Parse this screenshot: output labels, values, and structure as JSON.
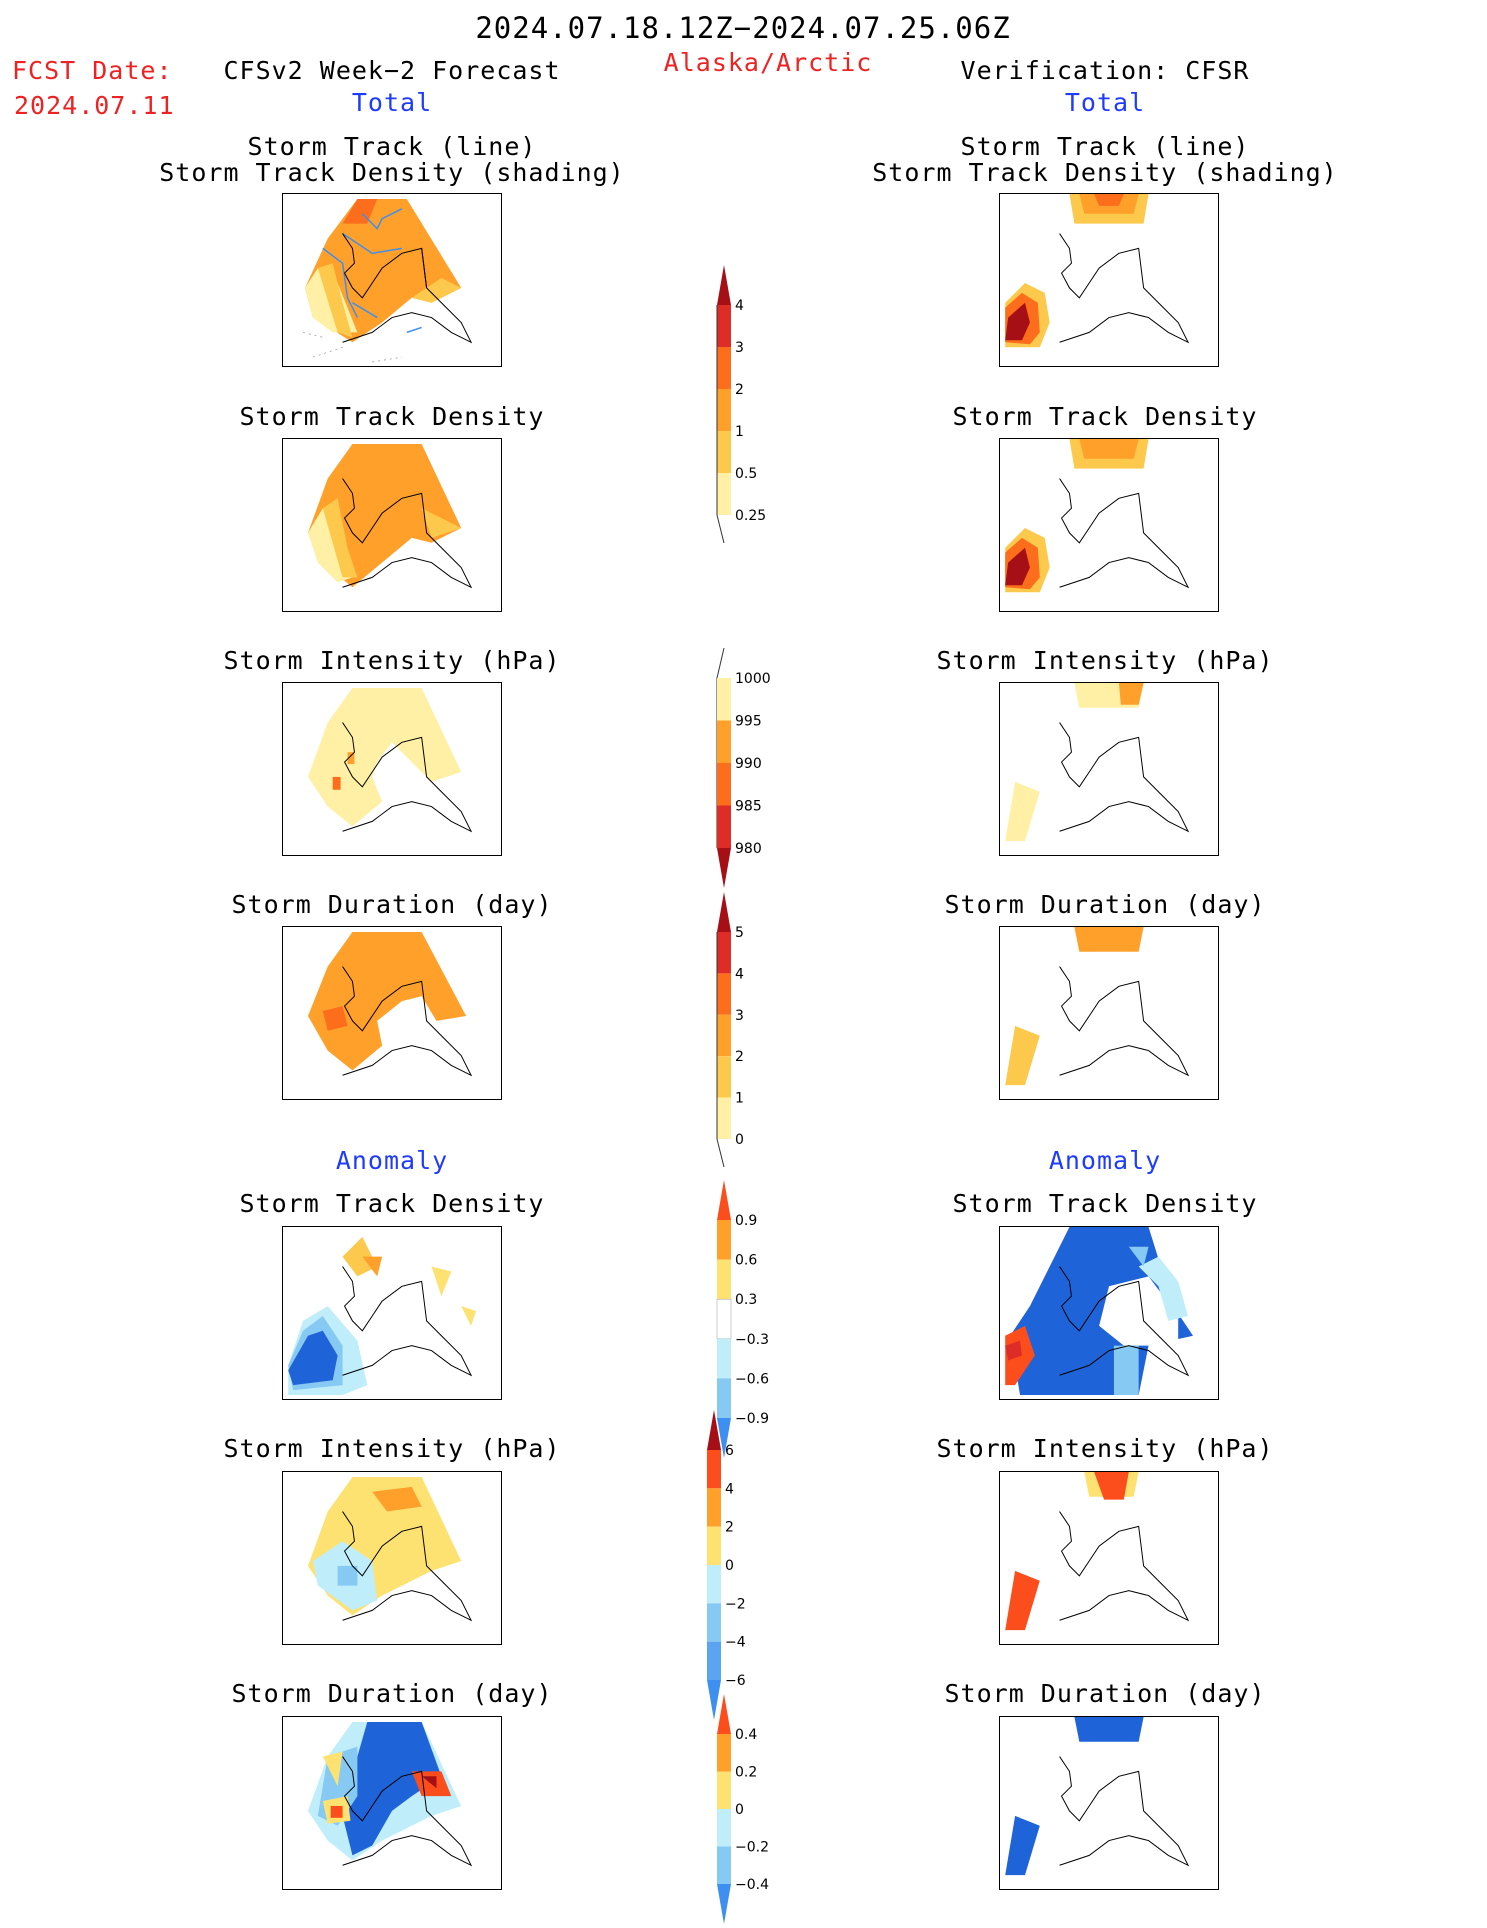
{
  "header": {
    "period": "2024.07.18.12Z−2024.07.25.06Z",
    "region": "Alaska/Arctic",
    "fcst_label": "FCST Date:",
    "fcst_date": "2024.07.11",
    "left_title": "CFSv2 Week−2 Forecast",
    "right_title": "Verification: CFSR",
    "left_section": "Total",
    "right_section": "Total",
    "anomaly_left": "Anomaly",
    "anomaly_right": "Anomaly"
  },
  "panels": {
    "track_line_1": "Storm Track (line)",
    "track_line_2": "Storm Track Density (shading)",
    "density": "Storm Track Density",
    "intensity": "Storm Intensity (hPa)",
    "duration": "Storm Duration (day)"
  },
  "colorbars": {
    "density_total": {
      "labels": [
        "4",
        "3",
        "2",
        "1",
        "0.5",
        "0.25"
      ],
      "colors": [
        "#a50f15",
        "#de2d26",
        "#fc6d1c",
        "#fea02a",
        "#fdc94d",
        "#fff0a5"
      ]
    },
    "intensity_total": {
      "labels": [
        "1000",
        "995",
        "990",
        "985",
        "980"
      ],
      "colors": [
        "#fff0a5",
        "#fea02a",
        "#fc6d1c",
        "#de2d26",
        "#a50f15"
      ]
    },
    "duration_total": {
      "labels": [
        "5",
        "4",
        "3",
        "2",
        "1",
        "0"
      ],
      "colors": [
        "#a50f15",
        "#de2d26",
        "#fc6d1c",
        "#fea02a",
        "#fdc94d",
        "#fff0a5"
      ]
    },
    "density_anom": {
      "labels": [
        "0.9",
        "0.6",
        "0.3",
        "−0.3",
        "−0.6",
        "−0.9"
      ],
      "colors": [
        "#fc4e1c",
        "#fea02a",
        "#fde272",
        "#ffffff",
        "#bfeefa",
        "#86c9f2",
        "#3d8ff0"
      ]
    },
    "intensity_anom": {
      "labels": [
        "6",
        "4",
        "2",
        "0",
        "−2",
        "−4",
        "−6"
      ],
      "colors": [
        "#a50f15",
        "#fc4e1c",
        "#fea02a",
        "#fde272",
        "#bfeefa",
        "#86c9f2",
        "#5aa4f2",
        "#3d8ff0"
      ]
    },
    "duration_anom": {
      "labels": [
        "0.4",
        "0.2",
        "0",
        "−0.2",
        "−0.4"
      ],
      "colors": [
        "#fc4e1c",
        "#fea02a",
        "#fde272",
        "#bfeefa",
        "#86c9f2",
        "#3d8ff0"
      ]
    }
  }
}
